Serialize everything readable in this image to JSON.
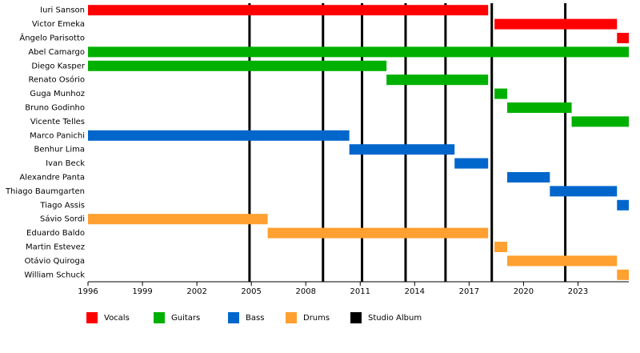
{
  "chart_data": {
    "type": "timeline",
    "xlim": [
      1996,
      2025.8
    ],
    "xticks": [
      1996,
      1999,
      2002,
      2005,
      2008,
      2011,
      2014,
      2017,
      2020,
      2023
    ],
    "series": [
      {
        "name": "Vocals",
        "color": "#ff0000",
        "categories": [
          "Iuri Sanson",
          "Victor Emeka",
          "Ângelo Parisotto"
        ],
        "start": [
          1996,
          2018.4,
          2025.15
        ],
        "end": [
          2018.05,
          2025.15,
          2025.8
        ]
      },
      {
        "name": "Guitars",
        "color": "#00b000",
        "categories": [
          "Abel Camargo",
          "Diego Kasper",
          "Renato Osório",
          "Guga Munhoz",
          "Bruno Godinho",
          "Vicente Telles"
        ],
        "start": [
          1996,
          1996,
          2012.45,
          2018.4,
          2019.1,
          2022.65
        ],
        "end": [
          2025.8,
          2012.45,
          2018.05,
          2019.1,
          2022.65,
          2025.8
        ]
      },
      {
        "name": "Bass",
        "color": "#0066cc",
        "categories": [
          "Marco Panichi",
          "Benhur Lima",
          "Ivan Beck",
          "Alexandre Panta",
          "Thiago Baumgarten",
          "Tiago Assis"
        ],
        "start": [
          1996,
          2010.4,
          2016.2,
          2019.1,
          2021.45,
          2025.15
        ],
        "end": [
          2010.4,
          2016.2,
          2018.05,
          2021.45,
          2025.15,
          2025.8
        ]
      },
      {
        "name": "Drums",
        "color": "#ffa030",
        "categories": [
          "Sávio Sordi",
          "Eduardo Baldo",
          "Martin Estevez",
          "Otávio Quiroga",
          "William Schuck"
        ],
        "start": [
          1996,
          2005.9,
          2018.4,
          2019.1,
          2025.15
        ],
        "end": [
          2005.9,
          2018.05,
          2019.1,
          2025.15,
          2025.8
        ]
      }
    ],
    "events": {
      "name": "Studio Album",
      "color": "#000000",
      "values": [
        2004.9,
        2008.95,
        2011.1,
        2013.5,
        2015.7,
        2018.25,
        2022.3
      ]
    }
  }
}
